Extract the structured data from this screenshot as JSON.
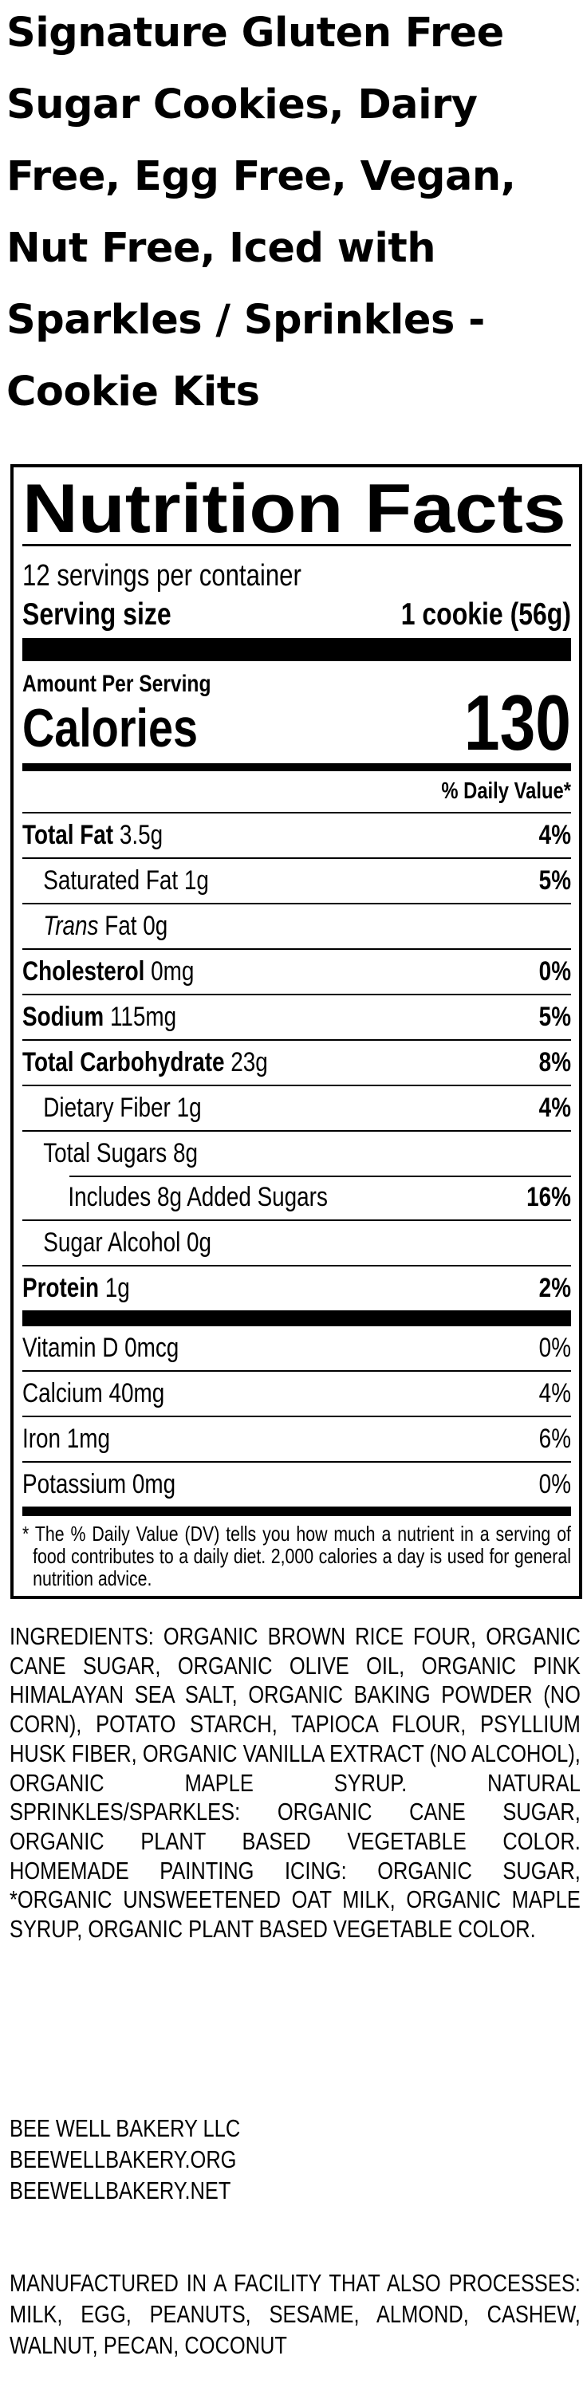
{
  "product_title": "Signature Gluten Free Sugar Cookies, Dairy Free, Egg Free, Vegan, Nut Free, Iced with Sparkles / Sprinkles - Cookie Kits",
  "nutrition": {
    "heading": "Nutrition Facts",
    "servings_per_container": "12 servings per container",
    "serving_size_label": "Serving size",
    "serving_size_value": "1 cookie (56g)",
    "amount_per_serving": "Amount Per Serving",
    "calories_label": "Calories",
    "calories_value": "130",
    "daily_value_header": "% Daily Value*",
    "rows": [
      {
        "name": "Total Fat",
        "amount": "3.5g",
        "dv": "4%"
      },
      {
        "name": "Saturated Fat",
        "amount": "1g",
        "dv": "5%"
      },
      {
        "name": "Trans",
        "name_rest": "Fat",
        "amount": "0g",
        "dv": ""
      },
      {
        "name": "Cholesterol",
        "amount": "0mg",
        "dv": "0%"
      },
      {
        "name": "Sodium",
        "amount": "115mg",
        "dv": "5%"
      },
      {
        "name": "Total Carbohydrate",
        "amount": "23g",
        "dv": "8%"
      },
      {
        "name": "Dietary Fiber",
        "amount": "1g",
        "dv": "4%"
      },
      {
        "name": "Total Sugars",
        "amount": "8g",
        "dv": ""
      },
      {
        "name": "Includes 8g Added Sugars",
        "amount": "",
        "dv": "16%"
      },
      {
        "name": "Sugar Alcohol",
        "amount": "0g",
        "dv": ""
      },
      {
        "name": "Protein",
        "amount": "1g",
        "dv": "2%"
      }
    ],
    "vitamins": [
      {
        "name": "Vitamin D",
        "amount": "0mcg",
        "dv": "0%"
      },
      {
        "name": "Calcium",
        "amount": "40mg",
        "dv": "4%"
      },
      {
        "name": "Iron",
        "amount": "1mg",
        "dv": "6%"
      },
      {
        "name": "Potassium",
        "amount": "0mg",
        "dv": "0%"
      }
    ],
    "footnote": "* The % Daily Value (DV) tells you how much a nutrient in a serving of food contributes to a daily diet. 2,000 calories a day is used for general nutrition advice."
  },
  "ingredients": "INGREDIENTS: ORGANIC BROWN RICE FOUR, ORGANIC CANE SUGAR, ORGANIC OLIVE OIL, ORGANIC PINK HIMALAYAN SEA SALT, ORGANIC BAKING POWDER (NO CORN), POTATO STARCH, TAPIOCA FLOUR, PSYLLIUM HUSK FIBER, ORGANIC VANILLA EXTRACT (NO ALCOHOL), ORGANIC MAPLE SYRUP. NATURAL SPRINKLES/SPARKLES: ORGANIC CANE SUGAR, ORGANIC PLANT BASED VEGETABLE COLOR. HOMEMADE PAINTING ICING: ORGANIC SUGAR, *ORGANIC UNSWEETENED OAT MILK, ORGANIC MAPLE SYRUP, ORGANIC PLANT BASED VEGETABLE COLOR.",
  "company": {
    "name": "BEE WELL BAKERY LLC",
    "website_1": "BEEWELLBAKERY.ORG",
    "website_2": "BEEWELLBAKERY.NET"
  },
  "allergen_statement": "MANUFACTURED IN A FACILITY THAT ALSO PROCESSES: MILK, EGG, PEANUTS, SESAME, ALMOND, CASHEW, WALNUT, PECAN, COCONUT"
}
